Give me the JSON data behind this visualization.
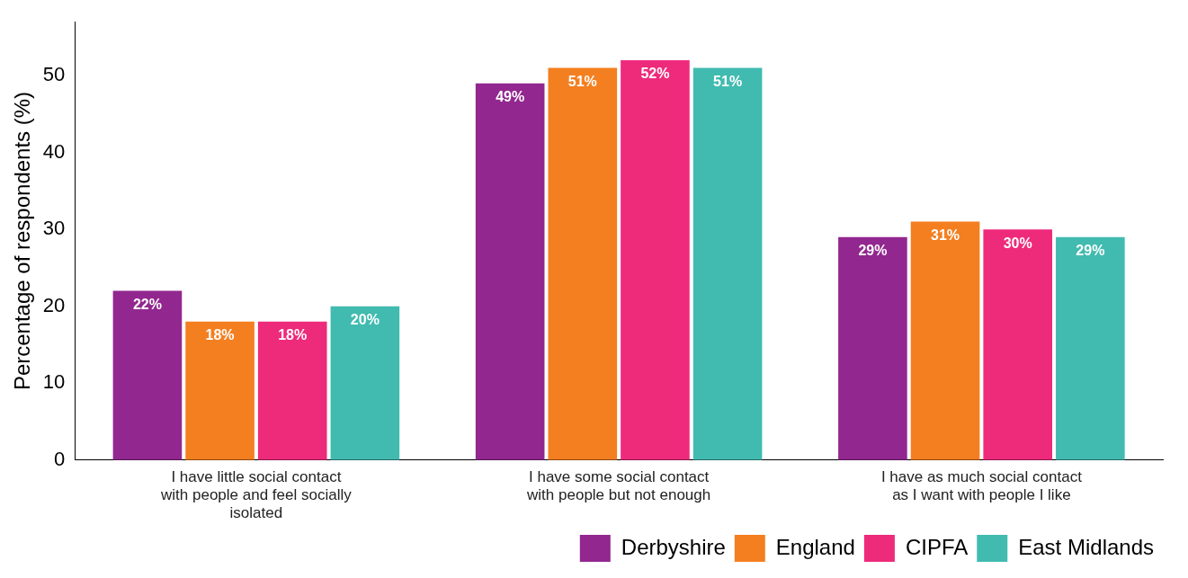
{
  "chart_data": {
    "type": "bar",
    "ylabel": "Percentage of respondents (%)",
    "categories": [
      "I have little social contact with people and feel socially isolated",
      "I have some social contact with people but not enough",
      "I have as much social contact as I want with people I like"
    ],
    "series": [
      {
        "name": "Derbyshire",
        "color": "#92278f",
        "values": [
          22,
          49,
          29
        ],
        "value_labels": [
          "22%",
          "49%",
          "29%"
        ]
      },
      {
        "name": "England",
        "color": "#f47f20",
        "values": [
          18,
          51,
          31
        ],
        "value_labels": [
          "18%",
          "51%",
          "31%"
        ]
      },
      {
        "name": "CIPFA",
        "color": "#ee2a7b",
        "values": [
          18,
          52,
          30
        ],
        "value_labels": [
          "18%",
          "52%",
          "30%"
        ]
      },
      {
        "name": "East Midlands",
        "color": "#41bbb0",
        "values": [
          20,
          51,
          29
        ],
        "value_labels": [
          "20%",
          "51%",
          "29%"
        ]
      }
    ],
    "ylim": [
      0,
      57
    ],
    "yticks": [
      0,
      10,
      20,
      30,
      40,
      50
    ],
    "grid": false,
    "legend": "bottom right"
  }
}
